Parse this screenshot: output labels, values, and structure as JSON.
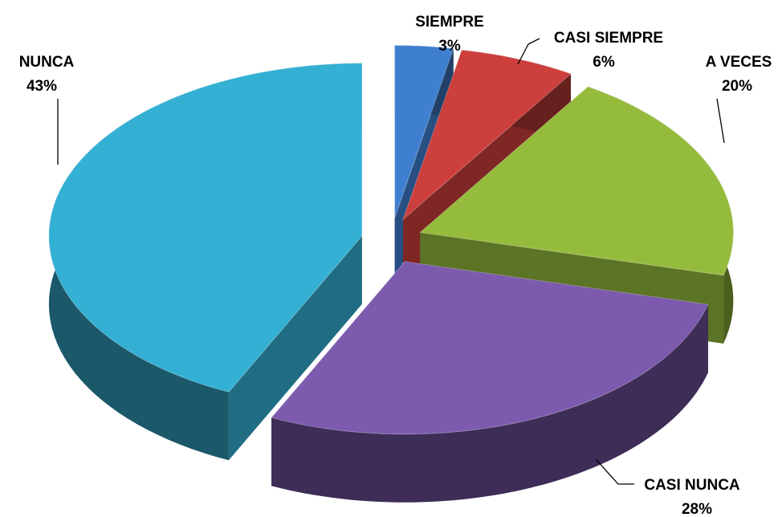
{
  "chart_data": {
    "type": "pie3d",
    "categories": [
      "SIEMPRE",
      "CASI SIEMPRE",
      "A VECES",
      "CASI NUNCA",
      "NUNCA"
    ],
    "values": [
      3,
      6,
      20,
      28,
      43
    ],
    "value_labels": [
      "3%",
      "6%",
      "20%",
      "28%",
      "43%"
    ],
    "colors": [
      "#3f7fd0",
      "#cc3f3c",
      "#95bb3c",
      "#7c5aae",
      "#33b0d4"
    ]
  }
}
